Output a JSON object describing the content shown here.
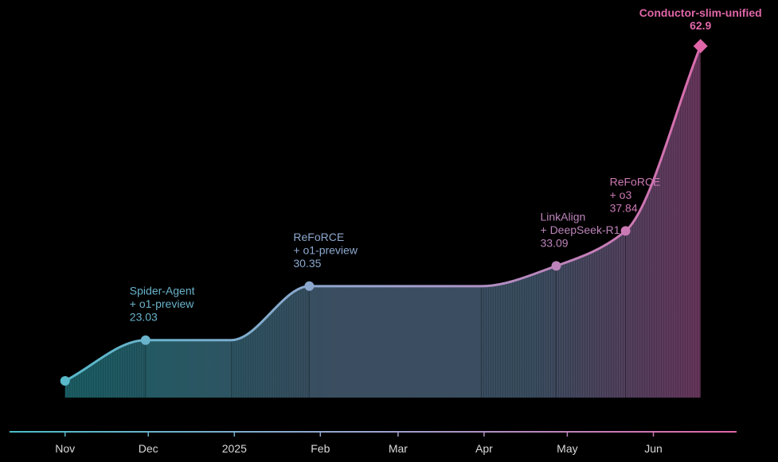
{
  "chart_data": {
    "type": "area",
    "title": "",
    "xlabel": "",
    "ylabel": "",
    "x_ticks": [
      {
        "label": "Nov",
        "date": "2024-11-01"
      },
      {
        "label": "Dec",
        "date": "2024-12-01"
      },
      {
        "label": "2025",
        "date": "2025-01-01"
      },
      {
        "label": "Feb",
        "date": "2025-02-01"
      },
      {
        "label": "Mar",
        "date": "2025-03-01"
      },
      {
        "label": "Apr",
        "date": "2025-04-01"
      },
      {
        "label": "May",
        "date": "2025-05-01"
      },
      {
        "label": "Jun",
        "date": "2025-06-01"
      }
    ],
    "xlim": [
      "2024-10-12",
      "2025-07-01"
    ],
    "ylim": [
      15,
      69
    ],
    "grid": false,
    "points": [
      {
        "date": "2024-11-01",
        "value": 17.5,
        "name_lines": [],
        "value_label": ""
      },
      {
        "date": "2024-11-30",
        "value": 23.03,
        "name_lines": [
          "Spider-Agent",
          "+ o1-preview"
        ],
        "value_label": "23.03"
      },
      {
        "date": "2024-12-31",
        "value": 23.03,
        "name_lines": [],
        "value_label": ""
      },
      {
        "date": "2025-01-28",
        "value": 30.35,
        "name_lines": [
          "ReFoRCE",
          "+ o1-preview"
        ],
        "value_label": "30.35"
      },
      {
        "date": "2025-03-31",
        "value": 30.35,
        "name_lines": [],
        "value_label": ""
      },
      {
        "date": "2025-04-27",
        "value": 33.09,
        "name_lines": [
          "LinkAlign",
          "+ DeepSeek-R1"
        ],
        "value_label": "33.09"
      },
      {
        "date": "2025-05-22",
        "value": 37.84,
        "name_lines": [
          "ReFoRCE",
          "+ o3"
        ],
        "value_label": "37.84"
      },
      {
        "date": "2025-06-18",
        "value": 62.9,
        "name_lines": [
          "Conductor-slim-unified"
        ],
        "value_label": "62.9"
      }
    ],
    "colors": {
      "start": "#4cbdc9",
      "mid": "#9aa3cf",
      "end": "#e066a8",
      "fill_start": "#156a6e",
      "fill_mid": "#3f5468",
      "fill_end": "#7a3563",
      "background": "#000000",
      "tick_text": "#d9d9d9"
    }
  }
}
